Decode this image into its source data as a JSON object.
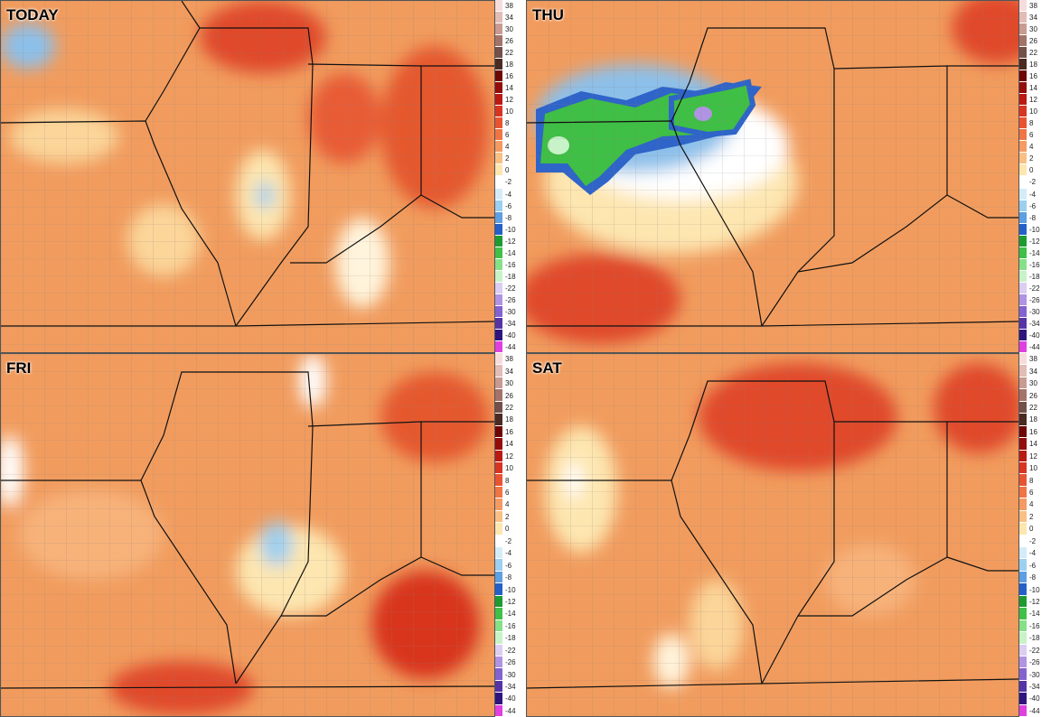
{
  "panels": [
    {
      "title": "TODAY"
    },
    {
      "title": "THU"
    },
    {
      "title": "FRI"
    },
    {
      "title": "SAT"
    }
  ],
  "colorbar": {
    "labels": [
      38,
      34,
      30,
      26,
      22,
      18,
      16,
      14,
      12,
      10,
      8,
      6,
      4,
      2,
      0,
      -2,
      -4,
      -6,
      -8,
      -10,
      -12,
      -14,
      -16,
      -18,
      -22,
      -26,
      -30,
      -34,
      -40,
      -44
    ],
    "colors": [
      "#f6dcdc",
      "#e2bcb6",
      "#c99a92",
      "#a3736a",
      "#73504a",
      "#4a2a22",
      "#6e0606",
      "#940c0c",
      "#ba1a14",
      "#d83422",
      "#e85432",
      "#f07444",
      "#f49a62",
      "#f8c084",
      "#fde6b0",
      "#ffffff",
      "#d4ecf8",
      "#9ccff0",
      "#5e9ee2",
      "#2460c8",
      "#1e9a32",
      "#40c048",
      "#86e088",
      "#c8f2c8",
      "#dccdf2",
      "#b093e2",
      "#8462d0",
      "#5634a6",
      "#30147e",
      "#e040e0"
    ]
  }
}
